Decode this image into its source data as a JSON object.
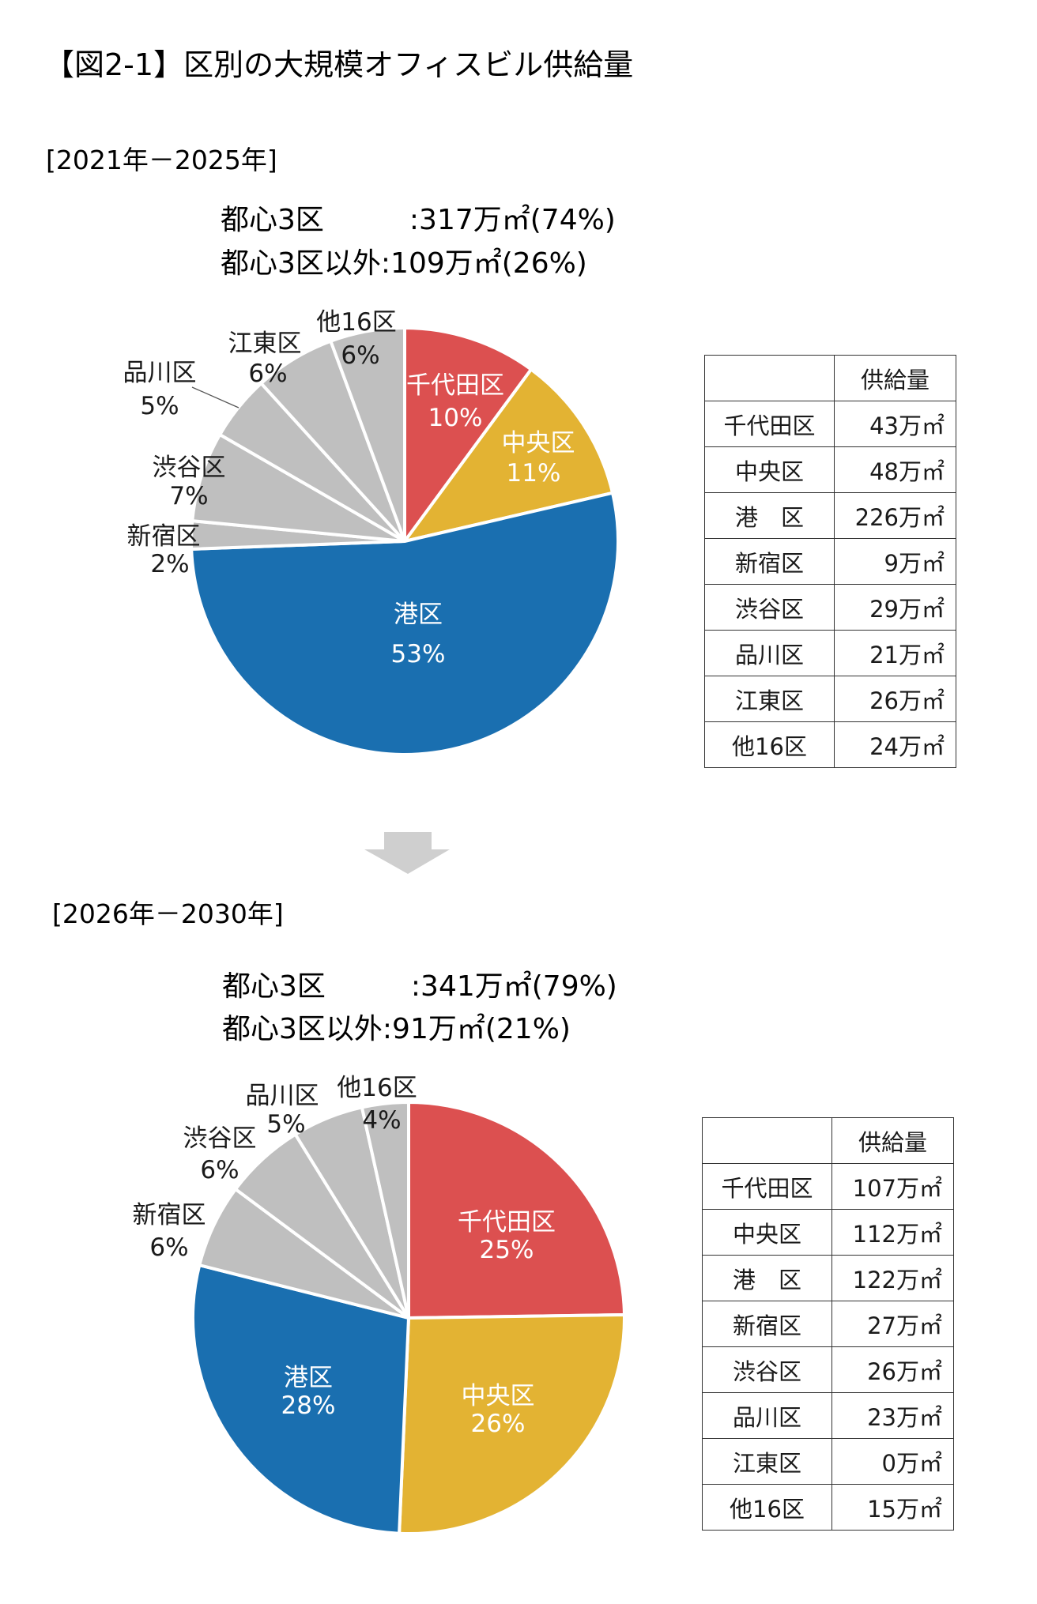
{
  "title": "【図2-1】区別の大規模オフィスビル供給量",
  "colors": {
    "chiyoda": "#dc5050",
    "chuo": "#e3b333",
    "minato": "#1a6fb0",
    "other": "#bfbfbf",
    "arrow": "#cfcfcf"
  },
  "table_header": "供給量",
  "chart_data": [
    {
      "type": "pie",
      "period": "[2021年－2025年]",
      "summary": [
        "都心3区　　　:317万㎡(74%)",
        "都心3区以外:109万㎡(26%)"
      ],
      "categories": [
        "千代田区",
        "中央区",
        "港区",
        "新宿区",
        "渋谷区",
        "品川区",
        "江東区",
        "他16区"
      ],
      "table_categories": [
        "千代田区",
        "中央区",
        "港　区",
        "新宿区",
        "渋谷区",
        "品川区",
        "江東区",
        "他16区"
      ],
      "values": [
        43,
        48,
        226,
        9,
        29,
        21,
        26,
        24
      ],
      "value_labels": [
        "43万㎡",
        "48万㎡",
        "226万㎡",
        "9万㎡",
        "29万㎡",
        "21万㎡",
        "26万㎡",
        "24万㎡"
      ],
      "percent_labels": [
        "10%",
        "11%",
        "53%",
        "2%",
        "7%",
        "5%",
        "6%",
        "6%"
      ],
      "unit": "万㎡"
    },
    {
      "type": "pie",
      "period": "[2026年－2030年]",
      "summary": [
        "都心3区　　　:341万㎡(79%)",
        "都心3区以外:91万㎡(21%)"
      ],
      "categories": [
        "千代田区",
        "中央区",
        "港区",
        "新宿区",
        "渋谷区",
        "品川区",
        "江東区",
        "他16区"
      ],
      "table_categories": [
        "千代田区",
        "中央区",
        "港　区",
        "新宿区",
        "渋谷区",
        "品川区",
        "江東区",
        "他16区"
      ],
      "values": [
        107,
        112,
        122,
        27,
        26,
        23,
        0,
        15
      ],
      "value_labels": [
        "107万㎡",
        "112万㎡",
        "122万㎡",
        "27万㎡",
        "26万㎡",
        "23万㎡",
        "0万㎡",
        "15万㎡"
      ],
      "percent_labels": [
        "25%",
        "26%",
        "28%",
        "6%",
        "6%",
        "5%",
        "",
        "4%"
      ],
      "unit": "万㎡"
    }
  ]
}
